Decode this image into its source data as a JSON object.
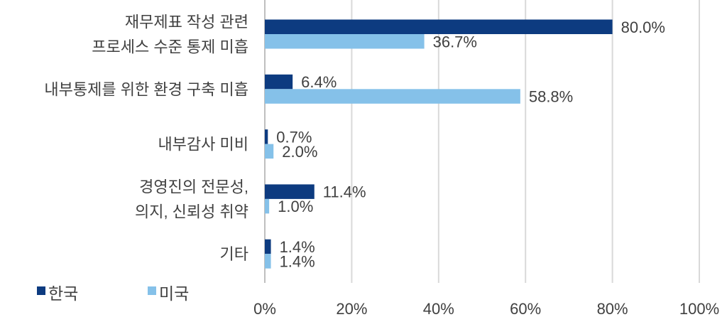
{
  "chart_data": {
    "type": "bar",
    "orientation": "horizontal",
    "categories": [
      [
        "재무제표 작성 관련",
        "프로세스 수준 통제 미흡"
      ],
      [
        "내부통제를 위한 환경 구축 미흡"
      ],
      [
        "내부감사 미비"
      ],
      [
        "경영진의 전문성,",
        "의지, 신뢰성 취약"
      ],
      [
        "기타"
      ]
    ],
    "series": [
      {
        "name": "한국",
        "color": "#0d3b80",
        "values": [
          80.0,
          6.4,
          0.7,
          11.4,
          1.4
        ],
        "labels": [
          "80.0%",
          "6.4%",
          "0.7%",
          "11.4%",
          "1.4%"
        ]
      },
      {
        "name": "미국",
        "color": "#85c1e9",
        "values": [
          36.7,
          58.8,
          2.0,
          1.0,
          1.4
        ],
        "labels": [
          "36.7%",
          "58.8%",
          "2.0%",
          "1.0%",
          "1.4%"
        ]
      }
    ],
    "xlim": [
      0,
      100
    ],
    "xticks": [
      "0%",
      "20%",
      "40%",
      "60%",
      "80%",
      "100%"
    ],
    "grid": true,
    "legend_position": "bottom-left"
  }
}
